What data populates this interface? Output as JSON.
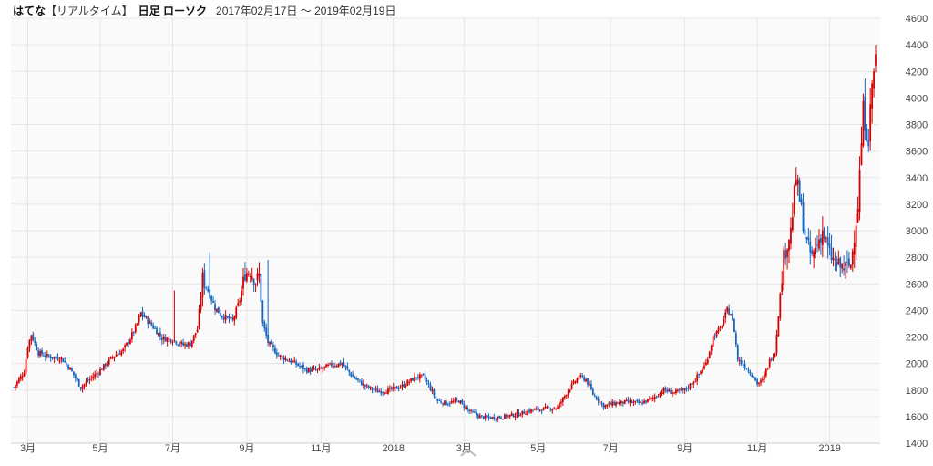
{
  "header": {
    "stock_name": "はてな",
    "bracket_label": "【リアルタイム】",
    "chart_mode": "日足 ローソク",
    "date_range": "2017年02月17日 ～ 2019年02月19日"
  },
  "colors": {
    "up": "#d20000",
    "down": "#1565c0",
    "grid": "#e6e6e6",
    "axis_text": "#444444",
    "plot_bg": "#fafafa"
  },
  "icons": {
    "scroll": "chevron-up-icon"
  },
  "chart_data": {
    "type": "candlestick",
    "title": "はてな 日足 ローソク",
    "ylim": [
      1400,
      4600
    ],
    "y_ticks": [
      1400,
      1600,
      1800,
      2000,
      2200,
      2400,
      2600,
      2800,
      3000,
      3200,
      3400,
      3600,
      3800,
      4000,
      4200,
      4400,
      4600
    ],
    "x_tick_labels": [
      "3月",
      "5月",
      "7月",
      "9月",
      "11月",
      "2018",
      "3月",
      "5月",
      "7月",
      "9月",
      "11月",
      "2019"
    ],
    "x_tick_indices": [
      8,
      49,
      90,
      132,
      174,
      215,
      255,
      297,
      338,
      380,
      421,
      462
    ],
    "total_days": 488,
    "price_path": [
      [
        0,
        1820
      ],
      [
        6,
        1940
      ],
      [
        8,
        2130
      ],
      [
        10,
        2220
      ],
      [
        14,
        2080
      ],
      [
        20,
        2050
      ],
      [
        27,
        2040
      ],
      [
        32,
        1960
      ],
      [
        38,
        1820
      ],
      [
        42,
        1870
      ],
      [
        49,
        1950
      ],
      [
        56,
        2050
      ],
      [
        62,
        2100
      ],
      [
        66,
        2190
      ],
      [
        70,
        2300
      ],
      [
        72,
        2380
      ],
      [
        76,
        2320
      ],
      [
        80,
        2260
      ],
      [
        84,
        2190
      ],
      [
        90,
        2180
      ],
      [
        96,
        2140
      ],
      [
        100,
        2150
      ],
      [
        104,
        2260
      ],
      [
        107,
        2640
      ],
      [
        111,
        2520
      ],
      [
        114,
        2420
      ],
      [
        118,
        2360
      ],
      [
        124,
        2320
      ],
      [
        128,
        2480
      ],
      [
        131,
        2680
      ],
      [
        134,
        2700
      ],
      [
        137,
        2620
      ],
      [
        139,
        2660
      ],
      [
        141,
        2300
      ],
      [
        144,
        2160
      ],
      [
        150,
        2060
      ],
      [
        158,
        2010
      ],
      [
        166,
        1950
      ],
      [
        172,
        1950
      ],
      [
        180,
        1990
      ],
      [
        186,
        2000
      ],
      [
        192,
        1900
      ],
      [
        199,
        1830
      ],
      [
        206,
        1790
      ],
      [
        213,
        1800
      ],
      [
        220,
        1830
      ],
      [
        228,
        1900
      ],
      [
        232,
        1900
      ],
      [
        236,
        1810
      ],
      [
        240,
        1720
      ],
      [
        245,
        1700
      ],
      [
        252,
        1720
      ],
      [
        258,
        1640
      ],
      [
        264,
        1600
      ],
      [
        270,
        1590
      ],
      [
        278,
        1600
      ],
      [
        286,
        1620
      ],
      [
        294,
        1650
      ],
      [
        302,
        1660
      ],
      [
        308,
        1670
      ],
      [
        314,
        1800
      ],
      [
        320,
        1900
      ],
      [
        324,
        1880
      ],
      [
        328,
        1770
      ],
      [
        334,
        1680
      ],
      [
        340,
        1700
      ],
      [
        348,
        1710
      ],
      [
        355,
        1700
      ],
      [
        362,
        1740
      ],
      [
        368,
        1800
      ],
      [
        374,
        1780
      ],
      [
        380,
        1800
      ],
      [
        386,
        1880
      ],
      [
        392,
        2000
      ],
      [
        396,
        2200
      ],
      [
        400,
        2260
      ],
      [
        404,
        2400
      ],
      [
        406,
        2380
      ],
      [
        408,
        2250
      ],
      [
        410,
        2030
      ],
      [
        414,
        1980
      ],
      [
        418,
        1920
      ],
      [
        421,
        1850
      ],
      [
        424,
        1870
      ],
      [
        428,
        2020
      ],
      [
        431,
        2090
      ],
      [
        436,
        2800
      ],
      [
        440,
        3000
      ],
      [
        443,
        3400
      ],
      [
        446,
        3150
      ],
      [
        449,
        2900
      ],
      [
        452,
        2800
      ],
      [
        455,
        2900
      ],
      [
        458,
        3000
      ],
      [
        462,
        2820
      ],
      [
        466,
        2740
      ],
      [
        470,
        2720
      ],
      [
        474,
        2740
      ],
      [
        478,
        3200
      ],
      [
        481,
        3900
      ],
      [
        484,
        3700
      ],
      [
        486,
        4100
      ],
      [
        488,
        4300
      ]
    ],
    "notable_spikes": [
      {
        "day": 91,
        "high": 2550
      },
      {
        "day": 111,
        "high": 2840
      },
      {
        "day": 144,
        "high": 2780
      },
      {
        "day": 443,
        "high": 3480
      },
      {
        "day": 488,
        "high": 4400
      }
    ]
  }
}
